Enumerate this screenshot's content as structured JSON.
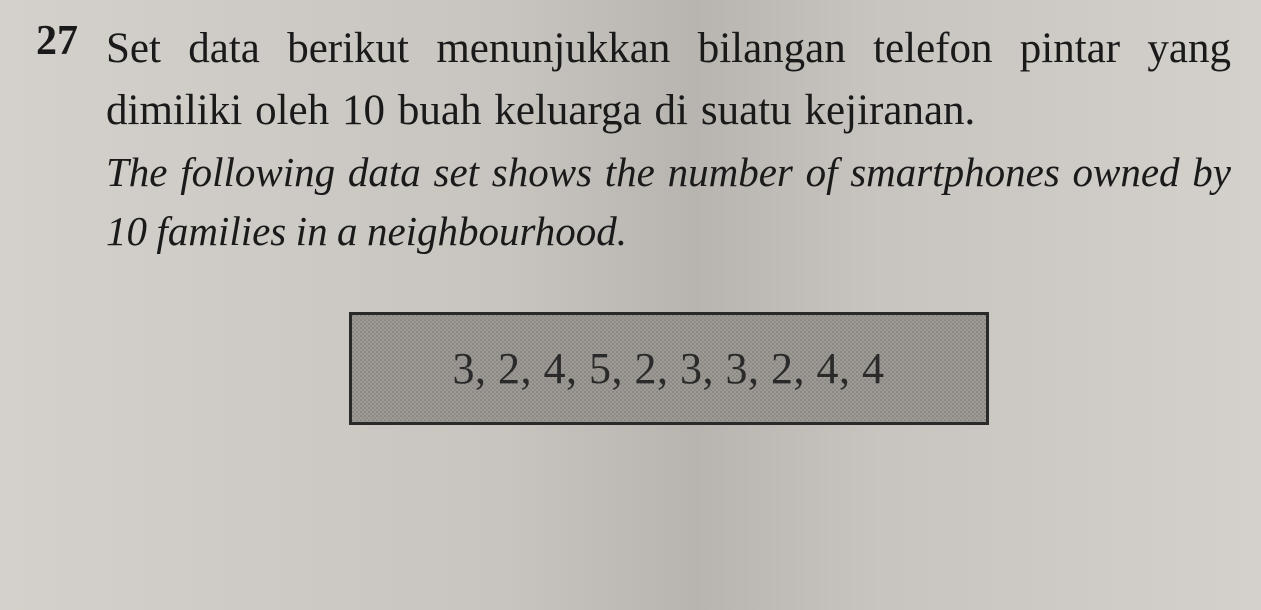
{
  "question": {
    "number": "27",
    "mainText": "Set data berikut menunjukkan bilangan telefon pintar yang dimiliki oleh 10 buah keluarga di suatu kejiranan.",
    "translationText": "The following data set shows the number of smartphones owned by 10 families in a neighbourhood.",
    "dataValues": "3, 2, 4, 5, 2, 3, 3, 2, 4, 4"
  },
  "styling": {
    "backgroundColor": "#cac6c1",
    "textColor": "#1a1a1a",
    "mainFontSize": 43,
    "translationFontSize": 41,
    "numberFontSize": 42,
    "dataFontSize": 44,
    "boxBorderColor": "#2a2a2a",
    "boxBackgroundColor": "#9e9a95",
    "boxBorderWidth": 3,
    "fontFamily": "Georgia"
  }
}
